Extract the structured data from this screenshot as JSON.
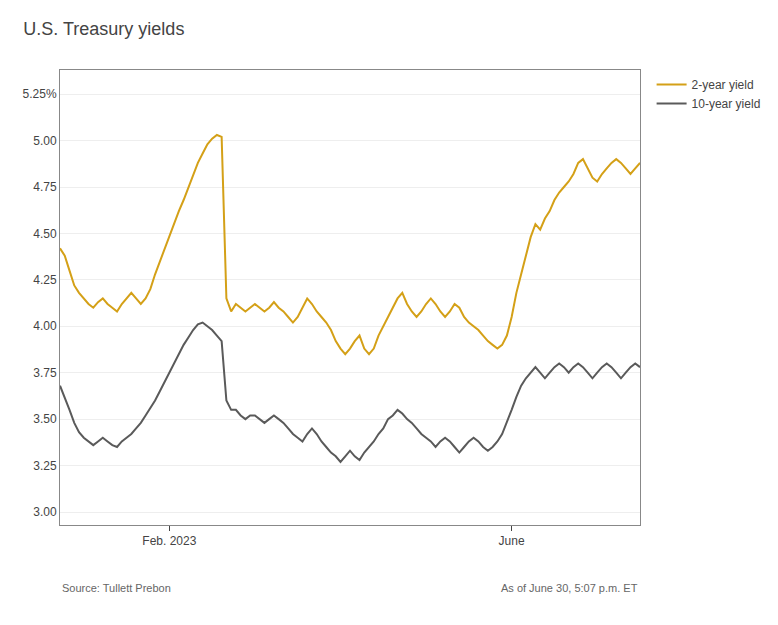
{
  "chart_data": {
    "type": "line",
    "title": "U.S. Treasury yields",
    "annotations": [
      "Source: Tullett Prebon",
      "As of June 30, 5:07 p.m. ET"
    ],
    "categories": [
      null,
      null,
      null,
      null,
      null,
      null,
      null,
      null,
      null,
      null,
      null,
      null,
      null,
      null,
      null,
      null,
      null,
      null,
      null,
      null,
      null,
      null,
      null,
      "Feb. 2023",
      null,
      null,
      null,
      null,
      null,
      null,
      null,
      null,
      null,
      null,
      null,
      null,
      null,
      null,
      null,
      null,
      null,
      null,
      null,
      null,
      null,
      null,
      null,
      null,
      null,
      null,
      null,
      null,
      null,
      null,
      null,
      null,
      null,
      null,
      null,
      null,
      null,
      null,
      null,
      null,
      null,
      null,
      null,
      null,
      null,
      null,
      null,
      null,
      null,
      null,
      null,
      null,
      null,
      null,
      null,
      null,
      null,
      null,
      null,
      null,
      null,
      null,
      null,
      null,
      null,
      null,
      null,
      null,
      null,
      null,
      null,
      "June",
      null,
      null,
      null,
      null,
      null,
      null,
      null,
      null,
      null,
      null,
      null,
      null,
      null,
      null,
      null,
      null,
      null,
      null,
      null,
      null,
      null,
      null,
      null,
      null,
      null,
      null,
      null
    ],
    "series": [
      {
        "name": "2-year yield",
        "color": "#D4A017",
        "values": [
          4.42,
          4.38,
          4.3,
          4.22,
          4.18,
          4.15,
          4.12,
          4.1,
          4.13,
          4.15,
          4.12,
          4.1,
          4.08,
          4.12,
          4.15,
          4.18,
          4.15,
          4.12,
          4.15,
          4.2,
          4.28,
          4.35,
          4.42,
          4.48,
          4.55,
          4.62,
          4.68,
          4.75,
          4.82,
          4.88,
          4.93,
          4.98,
          5.01,
          5.03,
          5.02,
          4.15,
          4.08,
          4.12,
          4.1,
          4.08,
          4.1,
          4.12,
          4.1,
          4.08,
          4.1,
          4.13,
          4.1,
          4.08,
          4.05,
          4.02,
          4.05,
          4.1,
          4.15,
          4.12,
          4.08,
          4.05,
          4.02,
          3.98,
          3.92,
          3.88,
          3.85,
          3.88,
          3.92,
          3.95,
          3.88,
          3.85,
          3.88,
          3.95,
          4.0,
          4.05,
          4.1,
          4.15,
          4.18,
          4.12,
          4.08,
          4.05,
          4.08,
          4.12,
          4.15,
          4.12,
          4.08,
          4.05,
          4.08,
          4.12,
          4.1,
          4.05,
          4.02,
          4.0,
          3.98,
          3.95,
          3.92,
          3.9,
          3.88,
          3.9,
          3.95,
          4.05,
          4.18,
          4.28,
          4.38,
          4.48,
          4.55,
          4.52,
          4.58,
          4.62,
          4.68,
          4.72,
          4.75,
          4.78,
          4.82,
          4.88,
          4.9,
          4.85,
          4.8,
          4.78,
          4.82,
          4.85,
          4.88,
          4.9,
          4.88,
          4.85,
          4.82,
          4.85,
          4.88
        ]
      },
      {
        "name": "10-year yield",
        "color": "#5A5A5A",
        "values": [
          3.68,
          3.62,
          3.55,
          3.48,
          3.43,
          3.4,
          3.38,
          3.36,
          3.38,
          3.4,
          3.38,
          3.36,
          3.35,
          3.38,
          3.4,
          3.42,
          3.45,
          3.48,
          3.52,
          3.56,
          3.6,
          3.65,
          3.7,
          3.75,
          3.8,
          3.85,
          3.9,
          3.94,
          3.98,
          4.01,
          4.02,
          4.0,
          3.98,
          3.95,
          3.92,
          3.6,
          3.55,
          3.55,
          3.52,
          3.5,
          3.52,
          3.52,
          3.5,
          3.48,
          3.5,
          3.52,
          3.5,
          3.48,
          3.45,
          3.42,
          3.4,
          3.38,
          3.42,
          3.45,
          3.42,
          3.38,
          3.35,
          3.32,
          3.3,
          3.27,
          3.3,
          3.33,
          3.3,
          3.28,
          3.32,
          3.35,
          3.38,
          3.42,
          3.45,
          3.5,
          3.52,
          3.55,
          3.53,
          3.5,
          3.48,
          3.45,
          3.42,
          3.4,
          3.38,
          3.35,
          3.38,
          3.4,
          3.38,
          3.35,
          3.32,
          3.35,
          3.38,
          3.4,
          3.38,
          3.35,
          3.33,
          3.35,
          3.38,
          3.42,
          3.48,
          3.55,
          3.62,
          3.68,
          3.72,
          3.75,
          3.78,
          3.75,
          3.72,
          3.75,
          3.78,
          3.8,
          3.78,
          3.75,
          3.78,
          3.8,
          3.78,
          3.75,
          3.72,
          3.75,
          3.78,
          3.8,
          3.78,
          3.75,
          3.72,
          3.75,
          3.78,
          3.8,
          3.78
        ]
      }
    ],
    "ylim": [
      2.93,
      5.38
    ],
    "yticks": [
      {
        "value": 3.0,
        "label": "3.00"
      },
      3.25,
      {
        "value": 3.5,
        "label": "3.50"
      },
      3.75,
      {
        "value": 4.0,
        "label": "4.00"
      },
      4.25,
      {
        "value": 4.5,
        "label": "4.50"
      },
      4.75,
      {
        "value": 5.0,
        "label": "5.00"
      },
      {
        "value": 5.25,
        "label": "5.25%"
      }
    ],
    "grid": true
  }
}
